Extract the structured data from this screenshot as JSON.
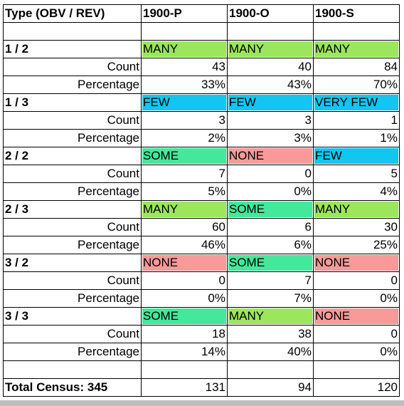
{
  "header": [
    "Type (OBV / REV)",
    "1900-P",
    "1900-O",
    "1900-S"
  ],
  "groups": [
    {
      "label": "1 / 2",
      "ratings": [
        {
          "text": "MANY",
          "color": "#9ce65c"
        },
        {
          "text": "MANY",
          "color": "#9ce65c"
        },
        {
          "text": "MANY",
          "color": "#9ce65c"
        }
      ],
      "count_label": "Count",
      "counts": [
        43,
        40,
        84
      ],
      "percentage_label": "Percentage",
      "percentages": [
        "33%",
        "43%",
        "70%"
      ]
    },
    {
      "label": "1 / 3",
      "ratings": [
        {
          "text": "FEW",
          "color": "#12c6f2"
        },
        {
          "text": "FEW",
          "color": "#12c6f2"
        },
        {
          "text": "VERY FEW",
          "color": "#12c6f2"
        }
      ],
      "count_label": "Count",
      "counts": [
        3,
        3,
        1
      ],
      "percentage_label": "Percentage",
      "percentages": [
        "2%",
        "3%",
        "1%"
      ]
    },
    {
      "label": "2 / 2",
      "ratings": [
        {
          "text": "SOME",
          "color": "#43e89a"
        },
        {
          "text": "NONE",
          "color": "#f99a99"
        },
        {
          "text": "FEW",
          "color": "#12c6f2"
        }
      ],
      "count_label": "Count",
      "counts": [
        7,
        0,
        5
      ],
      "percentage_label": "Percentage",
      "percentages": [
        "5%",
        "0%",
        "4%"
      ]
    },
    {
      "label": "2 / 3",
      "ratings": [
        {
          "text": "MANY",
          "color": "#9ce65c"
        },
        {
          "text": "SOME",
          "color": "#43e89a"
        },
        {
          "text": "MANY",
          "color": "#9ce65c"
        }
      ],
      "count_label": "Count",
      "counts": [
        60,
        6,
        30
      ],
      "percentage_label": "Percentage",
      "percentages": [
        "46%",
        "6%",
        "25%"
      ]
    },
    {
      "label": "3 / 2",
      "ratings": [
        {
          "text": "NONE",
          "color": "#f99a99"
        },
        {
          "text": "SOME",
          "color": "#43e89a"
        },
        {
          "text": "NONE",
          "color": "#f99a99"
        }
      ],
      "count_label": "Count",
      "counts": [
        0,
        7,
        0
      ],
      "percentage_label": "Percentage",
      "percentages": [
        "0%",
        "7%",
        "0%"
      ]
    },
    {
      "label": "3 / 3",
      "ratings": [
        {
          "text": "SOME",
          "color": "#43e89a"
        },
        {
          "text": "MANY",
          "color": "#9ce65c"
        },
        {
          "text": "NONE",
          "color": "#f99a99"
        }
      ],
      "count_label": "Count",
      "counts": [
        18,
        38,
        0
      ],
      "percentage_label": "Percentage",
      "percentages": [
        "14%",
        "40%",
        "0%"
      ]
    }
  ],
  "total": {
    "label": "Total Census: 345",
    "values": [
      131,
      94,
      120
    ]
  }
}
